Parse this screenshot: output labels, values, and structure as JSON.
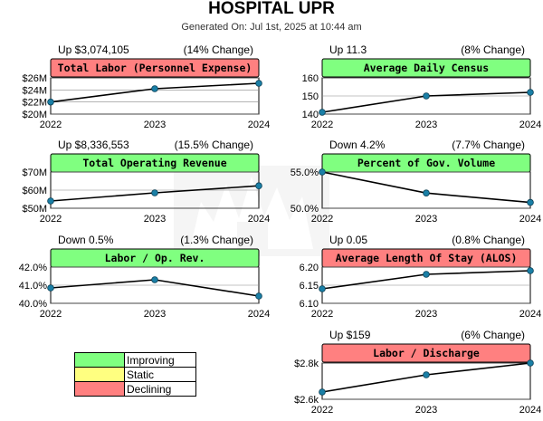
{
  "header": {
    "title": "HOSPITAL UPR",
    "generated": "Generated On: Jul 1st, 2025 at 10:44 am"
  },
  "colors": {
    "improving": "#80ff80",
    "static": "#ffff80",
    "declining": "#ff8080",
    "line": "#000000",
    "marker": "#1a7fa6"
  },
  "legend": {
    "items": [
      {
        "label": "Improving",
        "color": "#80ff80"
      },
      {
        "label": "Static",
        "color": "#ffff80"
      },
      {
        "label": "Declining",
        "color": "#ff8080"
      }
    ]
  },
  "watermark_icon": "hospital-emblem-watermark",
  "chart_data": [
    {
      "type": "line",
      "title": "Total Labor (Personnel Expense)",
      "status": "declining",
      "change_summary": "Up $3,074,105",
      "change_pct": "(14% Change)",
      "categories": [
        "2022",
        "2023",
        "2024"
      ],
      "values": [
        22000000,
        24200000,
        25100000
      ],
      "ylim": [
        20000000,
        26000000
      ],
      "yticks": [
        {
          "value": 26000000,
          "label": "$26M"
        },
        {
          "value": 24000000,
          "label": "$24M"
        },
        {
          "value": 22000000,
          "label": "$22M"
        },
        {
          "value": 20000000,
          "label": "$20M"
        }
      ]
    },
    {
      "type": "line",
      "title": "Average Daily Census",
      "status": "improving",
      "change_summary": "Up 11.3",
      "change_pct": "(8% Change)",
      "categories": [
        "2022",
        "2023",
        "2024"
      ],
      "values": [
        141,
        150,
        152
      ],
      "ylim": [
        140,
        160
      ],
      "yticks": [
        {
          "value": 160,
          "label": "160"
        },
        {
          "value": 150,
          "label": "150"
        },
        {
          "value": 140,
          "label": "140"
        }
      ]
    },
    {
      "type": "line",
      "title": "Total Operating Revenue",
      "status": "improving",
      "change_summary": "Up $8,336,553",
      "change_pct": "(15.5% Change)",
      "categories": [
        "2022",
        "2023",
        "2024"
      ],
      "values": [
        54000000,
        58500000,
        62400000
      ],
      "ylim": [
        50000000,
        70000000
      ],
      "yticks": [
        {
          "value": 70000000,
          "label": "$70M"
        },
        {
          "value": 60000000,
          "label": "$60M"
        },
        {
          "value": 50000000,
          "label": "$50M"
        }
      ]
    },
    {
      "type": "line",
      "title": "Percent of Gov. Volume",
      "status": "improving",
      "change_summary": "Down 4.2%",
      "change_pct": "(7.7% Change)",
      "categories": [
        "2022",
        "2023",
        "2024"
      ],
      "values": [
        55.0,
        52.1,
        50.8
      ],
      "ylim": [
        50,
        55
      ],
      "yticks": [
        {
          "value": 55,
          "label": "55.0%"
        },
        {
          "value": 50,
          "label": "50.0%"
        }
      ]
    },
    {
      "type": "line",
      "title": "Labor / Op. Rev.",
      "status": "improving",
      "change_summary": "Down 0.5%",
      "change_pct": "(1.3% Change)",
      "categories": [
        "2022",
        "2023",
        "2024"
      ],
      "values": [
        40.85,
        41.3,
        40.4
      ],
      "ylim": [
        40,
        42
      ],
      "yticks": [
        {
          "value": 42,
          "label": "42.0%"
        },
        {
          "value": 41,
          "label": "41.0%"
        },
        {
          "value": 40,
          "label": "40.0%"
        }
      ]
    },
    {
      "type": "line",
      "title": "Average Length Of Stay (ALOS)",
      "status": "declining",
      "change_summary": "Up 0.05",
      "change_pct": "(0.8% Change)",
      "categories": [
        "2022",
        "2023",
        "2024"
      ],
      "values": [
        6.14,
        6.18,
        6.19
      ],
      "ylim": [
        6.1,
        6.2
      ],
      "yticks": [
        {
          "value": 6.2,
          "label": "6.20"
        },
        {
          "value": 6.15,
          "label": "6.15"
        },
        {
          "value": 6.1,
          "label": "6.10"
        }
      ]
    },
    {
      "type": "line",
      "title": "Labor / Discharge",
      "status": "declining",
      "change_summary": "Up $159",
      "change_pct": "(6% Change)",
      "categories": [
        "2022",
        "2023",
        "2024"
      ],
      "values": [
        2640,
        2735,
        2800
      ],
      "ylim": [
        2600,
        2800
      ],
      "yticks": [
        {
          "value": 2800,
          "label": "$2.8k"
        },
        {
          "value": 2600,
          "label": "$2.6k"
        }
      ]
    }
  ]
}
